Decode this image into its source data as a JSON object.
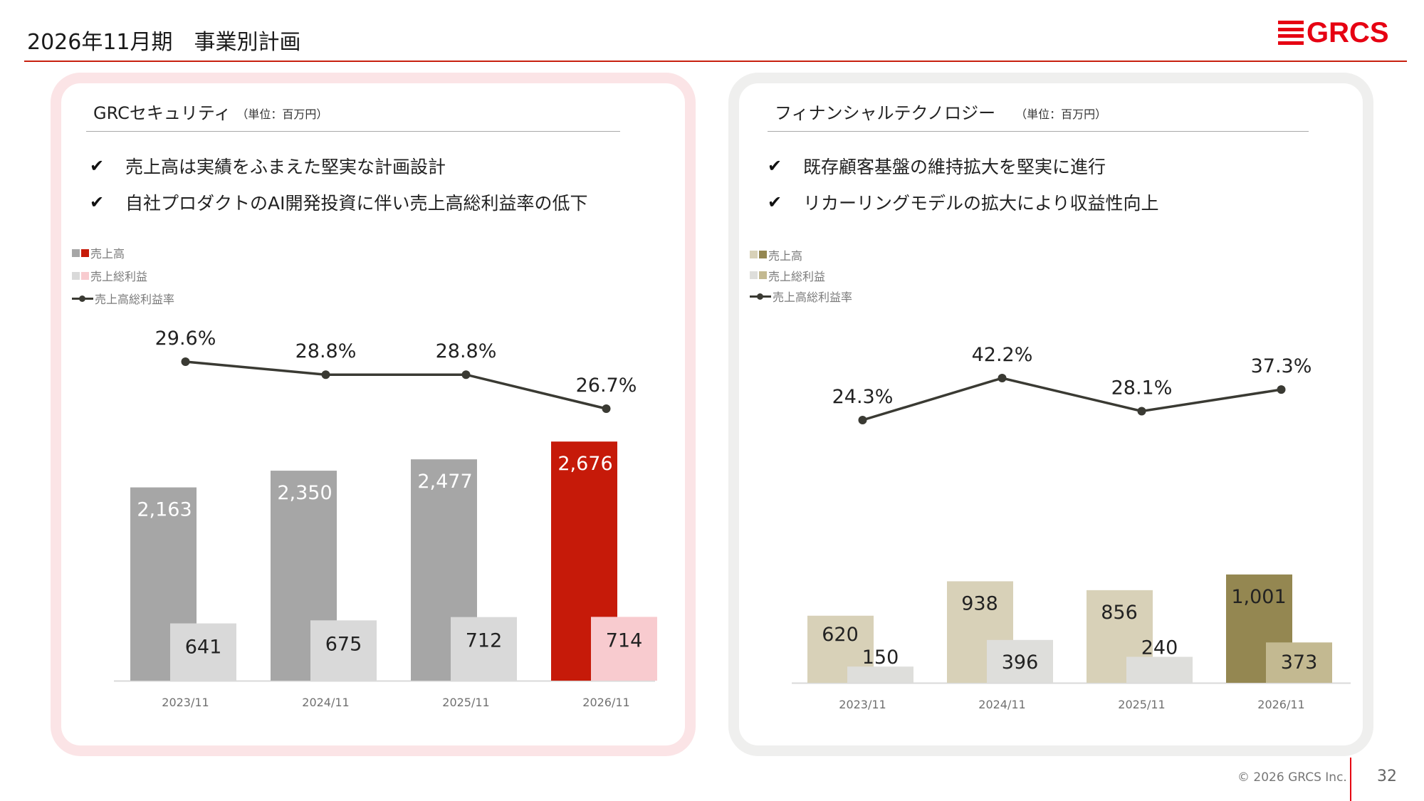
{
  "header": {
    "title": "2026年11月期　事業別計画",
    "logo_text": "GRCS"
  },
  "panels": [
    {
      "id": "grc-security",
      "title": "GRCセキュリティ",
      "unit": "（単位：百万円）",
      "bullets": [
        "売上高は実績をふまえた堅実な計画設計",
        "自社プロダクトのAI開発投資に伴い売上高総利益率の低下"
      ],
      "legend": [
        "売上高",
        "売上総利益",
        "売上高総利益率"
      ],
      "colors": {
        "sales": "#a6a6a6",
        "sales_highlight": "#c61a09",
        "gross": "#d9d9d9",
        "gross_highlight": "#f8cbcf",
        "line": "#3a3a33"
      }
    },
    {
      "id": "fintech",
      "title": "フィナンシャルテクノロジー",
      "unit": "（単位：百万円）",
      "bullets": [
        "既存顧客基盤の維持拡大を堅実に進行",
        "リカーリングモデルの拡大により収益性向上"
      ],
      "legend": [
        "売上高",
        "売上総利益",
        "売上高総利益率"
      ],
      "colors": {
        "sales": "#d8d1b8",
        "sales_highlight": "#948751",
        "gross": "#dededb",
        "gross_highlight": "#c3b991",
        "line": "#3a3a33"
      }
    }
  ],
  "chart_data": [
    {
      "type": "bar",
      "title": "GRCセキュリティ",
      "unit": "百万円",
      "categories": [
        "2023/11",
        "2024/11",
        "2025/11",
        "2026/11"
      ],
      "series": [
        {
          "name": "売上高",
          "type": "bar",
          "values": [
            2163,
            2350,
            2477,
            2676
          ],
          "labels": [
            "2,163",
            "2,350",
            "2,477",
            "2,676"
          ]
        },
        {
          "name": "売上総利益",
          "type": "bar",
          "values": [
            641,
            675,
            712,
            714
          ],
          "labels": [
            "641",
            "675",
            "712",
            "714"
          ]
        },
        {
          "name": "売上高総利益率",
          "type": "line",
          "values": [
            29.6,
            28.8,
            28.8,
            26.7
          ],
          "labels": [
            "29.6%",
            "28.8%",
            "28.8%",
            "26.7%"
          ]
        }
      ],
      "highlight_index": 3,
      "legend_position": "top-left",
      "grid": false
    },
    {
      "type": "bar",
      "title": "フィナンシャルテクノロジー",
      "unit": "百万円",
      "categories": [
        "2023/11",
        "2024/11",
        "2025/11",
        "2026/11"
      ],
      "series": [
        {
          "name": "売上高",
          "type": "bar",
          "values": [
            620,
            938,
            856,
            1001
          ],
          "labels": [
            "620",
            "938",
            "856",
            "1,001"
          ]
        },
        {
          "name": "売上総利益",
          "type": "bar",
          "values": [
            150,
            396,
            240,
            373
          ],
          "labels": [
            "150",
            "396",
            "240",
            "373"
          ]
        },
        {
          "name": "売上高総利益率",
          "type": "line",
          "values": [
            24.3,
            42.2,
            28.1,
            37.3
          ],
          "labels": [
            "24.3%",
            "42.2%",
            "28.1%",
            "37.3%"
          ]
        }
      ],
      "highlight_index": 3,
      "legend_position": "top-left",
      "grid": false
    }
  ],
  "footer": {
    "copyright": "© 2026 GRCS Inc.",
    "page_number": "32"
  }
}
